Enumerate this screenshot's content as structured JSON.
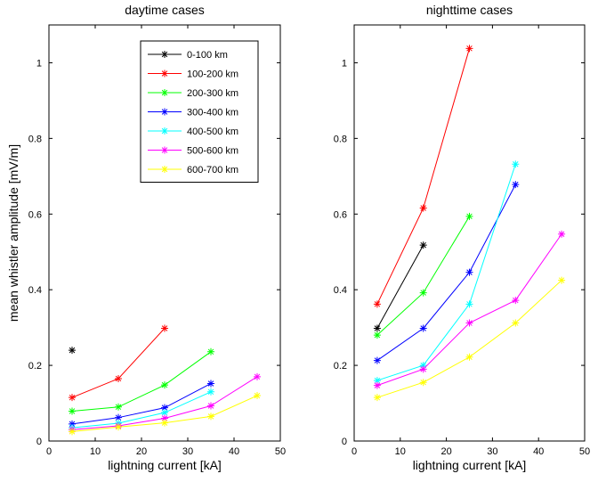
{
  "chart_data": [
    {
      "type": "line",
      "title": "daytime cases",
      "xlabel": "lightning current [kA]",
      "ylabel": "mean whistler amplitude [mV/m]",
      "xlim": [
        0,
        50
      ],
      "ylim": [
        0,
        1.1
      ],
      "xticks": [
        "0",
        "10",
        "20",
        "30",
        "40",
        "50"
      ],
      "yticks": [
        "0",
        "0.2",
        "0.4",
        "0.6",
        "0.8",
        "1"
      ],
      "grid": false,
      "legend_position": "top-right",
      "series": [
        {
          "name": "0-100 km",
          "color": "#000000",
          "x": [
            5
          ],
          "y": [
            0.24
          ]
        },
        {
          "name": "100-200 km",
          "color": "#ff0000",
          "x": [
            5,
            15,
            25
          ],
          "y": [
            0.115,
            0.165,
            0.298
          ]
        },
        {
          "name": "200-300 km",
          "color": "#00ff00",
          "x": [
            5,
            15,
            25,
            35
          ],
          "y": [
            0.079,
            0.09,
            0.148,
            0.236
          ]
        },
        {
          "name": "300-400 km",
          "color": "#0000ff",
          "x": [
            5,
            15,
            25,
            35
          ],
          "y": [
            0.045,
            0.062,
            0.088,
            0.152
          ]
        },
        {
          "name": "400-500 km",
          "color": "#00ffff",
          "x": [
            5,
            15,
            25,
            35
          ],
          "y": [
            0.035,
            0.047,
            0.075,
            0.13
          ]
        },
        {
          "name": "500-600 km",
          "color": "#ff00ff",
          "x": [
            5,
            15,
            25,
            35,
            45
          ],
          "y": [
            0.03,
            0.04,
            0.06,
            0.093,
            0.17
          ]
        },
        {
          "name": "600-700 km",
          "color": "#ffff00",
          "x": [
            5,
            15,
            25,
            35,
            45
          ],
          "y": [
            0.025,
            0.037,
            0.048,
            0.065,
            0.12
          ]
        }
      ]
    },
    {
      "type": "line",
      "title": "nighttime cases",
      "xlabel": "lightning current [kA]",
      "ylabel": "",
      "xlim": [
        0,
        50
      ],
      "ylim": [
        0,
        1.1
      ],
      "xticks": [
        "0",
        "10",
        "20",
        "30",
        "40",
        "50"
      ],
      "yticks": [
        "0",
        "0.2",
        "0.4",
        "0.6",
        "0.8",
        "1"
      ],
      "grid": false,
      "series": [
        {
          "name": "0-100 km",
          "color": "#000000",
          "x": [
            5,
            15
          ],
          "y": [
            0.298,
            0.518
          ]
        },
        {
          "name": "100-200 km",
          "color": "#ff0000",
          "x": [
            5,
            15,
            25
          ],
          "y": [
            0.362,
            0.616,
            1.038
          ]
        },
        {
          "name": "200-300 km",
          "color": "#00ff00",
          "x": [
            5,
            15,
            25
          ],
          "y": [
            0.28,
            0.392,
            0.594
          ]
        },
        {
          "name": "300-400 km",
          "color": "#0000ff",
          "x": [
            5,
            15,
            25,
            35
          ],
          "y": [
            0.213,
            0.298,
            0.446,
            0.678
          ]
        },
        {
          "name": "400-500 km",
          "color": "#00ffff",
          "x": [
            5,
            15,
            25,
            35
          ],
          "y": [
            0.16,
            0.2,
            0.362,
            0.732
          ]
        },
        {
          "name": "500-600 km",
          "color": "#ff00ff",
          "x": [
            5,
            15,
            25,
            35,
            45
          ],
          "y": [
            0.147,
            0.19,
            0.312,
            0.372,
            0.547
          ]
        },
        {
          "name": "600-700 km",
          "color": "#ffff00",
          "x": [
            5,
            15,
            25,
            35,
            45
          ],
          "y": [
            0.115,
            0.155,
            0.222,
            0.312,
            0.425
          ]
        }
      ]
    }
  ]
}
